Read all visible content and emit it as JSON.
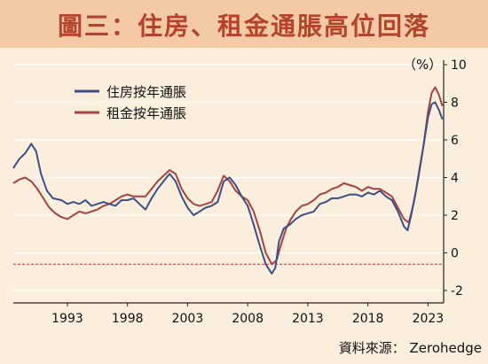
{
  "title": "圖三：住房、租金通脹高位回落",
  "source": "資料來源： Zerohedge",
  "chart_data": {
    "type": "line",
    "unit": "（%）",
    "yticks": [
      10,
      8,
      6,
      4,
      2,
      0,
      -2
    ],
    "ylim": [
      -2,
      10
    ],
    "xlim": [
      1988.5,
      2024.3
    ],
    "xticks": [
      "1993",
      "1998",
      "2003",
      "2008",
      "2013",
      "2018",
      "2023"
    ],
    "xtick_values": [
      1993,
      1998,
      2003,
      2008,
      2013,
      2018,
      2023
    ],
    "reference_line": -0.6,
    "colors": {
      "housing": "#3c4f86",
      "rent": "#a9413f",
      "reference": "#cc3333"
    },
    "series": [
      {
        "name": "住房按年通脹",
        "x": [
          1988.5,
          1989.0,
          1989.5,
          1990.0,
          1990.4,
          1990.8,
          1991.3,
          1991.8,
          1992.5,
          1993.0,
          1993.5,
          1994.0,
          1994.5,
          1995.0,
          1995.5,
          1996.0,
          1996.5,
          1997.0,
          1997.5,
          1998.0,
          1998.5,
          1999.0,
          1999.5,
          2000.0,
          2000.5,
          2001.0,
          2001.5,
          2002.0,
          2002.5,
          2003.0,
          2003.5,
          2004.0,
          2004.5,
          2005.0,
          2005.5,
          2006.0,
          2006.5,
          2007.0,
          2007.5,
          2008.0,
          2008.5,
          2009.0,
          2009.5,
          2010.0,
          2010.3,
          2010.6,
          2011.0,
          2011.5,
          2012.0,
          2012.5,
          2013.0,
          2013.5,
          2014.0,
          2014.5,
          2015.0,
          2015.5,
          2016.0,
          2016.5,
          2017.0,
          2017.5,
          2018.0,
          2018.5,
          2019.0,
          2019.5,
          2020.0,
          2020.5,
          2021.0,
          2021.3,
          2021.6,
          2022.0,
          2022.3,
          2022.6,
          2023.0,
          2023.3,
          2023.6,
          2023.9,
          2024.2
        ],
        "values": [
          4.5,
          5.0,
          5.3,
          5.8,
          5.4,
          4.2,
          3.3,
          2.9,
          2.8,
          2.6,
          2.7,
          2.6,
          2.8,
          2.5,
          2.6,
          2.7,
          2.6,
          2.5,
          2.8,
          2.8,
          2.9,
          2.6,
          2.3,
          2.9,
          3.4,
          3.8,
          4.2,
          3.8,
          3.0,
          2.4,
          2.0,
          2.2,
          2.4,
          2.5,
          2.7,
          3.8,
          4.0,
          3.6,
          3.0,
          2.5,
          1.5,
          0.4,
          -0.6,
          -1.1,
          -0.8,
          0.6,
          1.3,
          1.5,
          1.8,
          2.0,
          2.1,
          2.2,
          2.6,
          2.7,
          2.9,
          2.9,
          3.0,
          3.1,
          3.1,
          3.0,
          3.2,
          3.1,
          3.3,
          3.0,
          2.8,
          2.2,
          1.4,
          1.2,
          2.0,
          3.3,
          4.5,
          5.6,
          7.2,
          7.9,
          8.0,
          7.6,
          7.1
        ]
      },
      {
        "name": "租金按年通脹",
        "x": [
          1988.5,
          1989.0,
          1989.5,
          1990.0,
          1990.5,
          1991.0,
          1991.5,
          1992.0,
          1992.5,
          1993.0,
          1993.5,
          1994.0,
          1994.5,
          1995.0,
          1995.5,
          1996.0,
          1996.5,
          1997.0,
          1997.5,
          1998.0,
          1998.5,
          1999.0,
          1999.5,
          2000.0,
          2000.5,
          2001.0,
          2001.5,
          2002.0,
          2002.5,
          2003.0,
          2003.5,
          2004.0,
          2004.5,
          2005.0,
          2005.5,
          2006.0,
          2006.5,
          2007.0,
          2007.5,
          2008.0,
          2008.5,
          2009.0,
          2009.5,
          2010.0,
          2010.4,
          2010.8,
          2011.2,
          2011.6,
          2012.0,
          2012.5,
          2013.0,
          2013.5,
          2014.0,
          2014.5,
          2015.0,
          2015.5,
          2016.0,
          2016.5,
          2017.0,
          2017.5,
          2018.0,
          2018.5,
          2019.0,
          2019.5,
          2020.0,
          2020.5,
          2021.0,
          2021.4,
          2021.8,
          2022.2,
          2022.6,
          2023.0,
          2023.3,
          2023.6,
          2023.9,
          2024.2
        ],
        "values": [
          3.7,
          3.9,
          4.0,
          3.8,
          3.4,
          2.9,
          2.4,
          2.1,
          1.9,
          1.8,
          2.0,
          2.2,
          2.1,
          2.2,
          2.3,
          2.5,
          2.6,
          2.8,
          3.0,
          3.1,
          3.0,
          3.0,
          3.0,
          3.4,
          3.8,
          4.1,
          4.4,
          4.2,
          3.4,
          2.9,
          2.6,
          2.5,
          2.6,
          2.7,
          3.3,
          4.1,
          3.8,
          3.3,
          3.0,
          2.8,
          2.2,
          1.2,
          0.0,
          -0.6,
          -0.4,
          0.5,
          1.3,
          1.8,
          2.2,
          2.5,
          2.6,
          2.8,
          3.1,
          3.2,
          3.4,
          3.5,
          3.7,
          3.6,
          3.5,
          3.3,
          3.5,
          3.4,
          3.4,
          3.2,
          3.0,
          2.4,
          1.8,
          1.6,
          2.6,
          4.0,
          5.6,
          7.5,
          8.5,
          8.8,
          8.4,
          7.8
        ]
      }
    ]
  }
}
